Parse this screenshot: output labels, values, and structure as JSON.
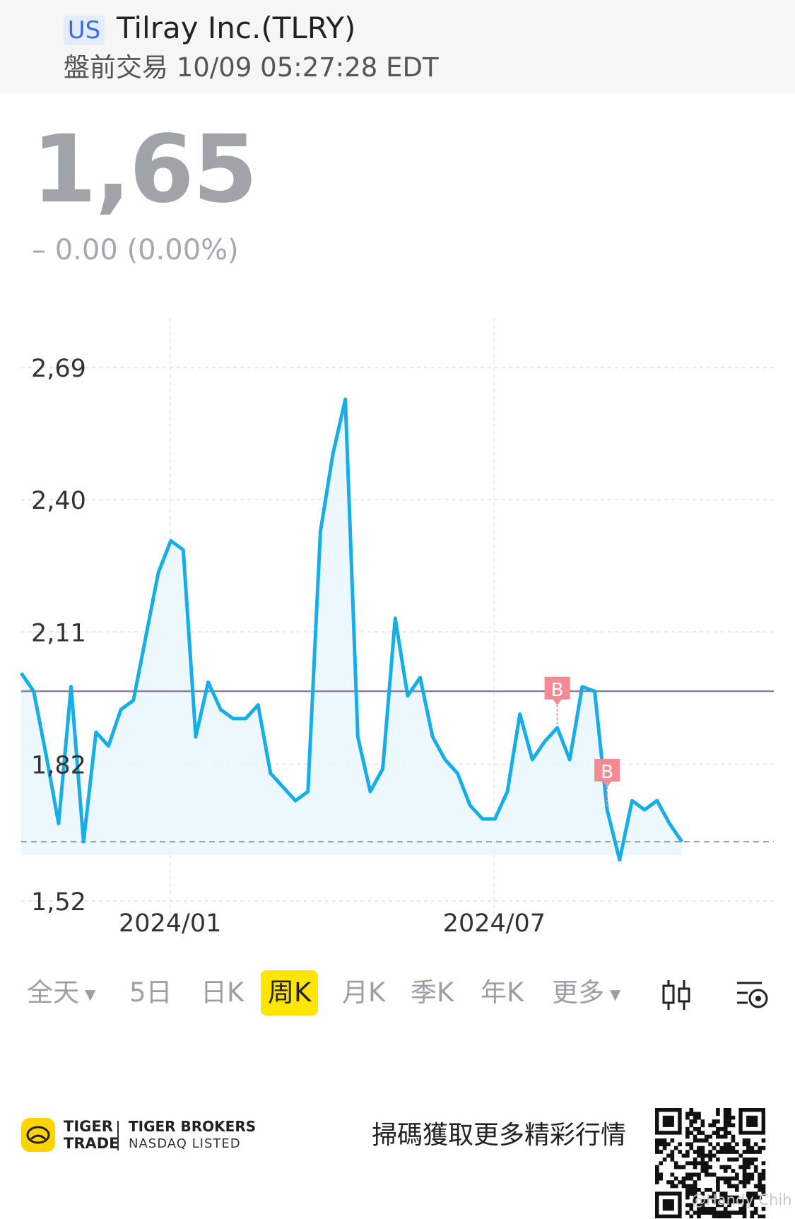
{
  "header": {
    "market": "US",
    "stock_name": "Tilray Inc.(TLRY)",
    "session": "盤前交易 10/09 05:27:28 EDT"
  },
  "quote": {
    "price": "1,65",
    "change": "– 0.00 (0.00%)"
  },
  "chart_data": {
    "type": "line",
    "y_ticks": [
      "2,69",
      "2,40",
      "2,11",
      "1,82",
      "1,52"
    ],
    "x_ticks": [
      "2024/01",
      "2024/07"
    ],
    "ylim": [
      1.52,
      2.69
    ],
    "grid": true,
    "reference_lines": {
      "purple": 1.98,
      "dashed_last": 1.65
    },
    "markers": [
      {
        "label": "B",
        "index": 43
      },
      {
        "label": "B",
        "index": 47
      }
    ],
    "series": [
      {
        "values": [
          2.02,
          1.98,
          1.84,
          1.69,
          1.99,
          1.65,
          1.89,
          1.86,
          1.94,
          1.96,
          2.1,
          2.24,
          2.31,
          2.29,
          1.88,
          2.0,
          1.94,
          1.92,
          1.92,
          1.95,
          1.8,
          1.77,
          1.74,
          1.76,
          2.33,
          2.5,
          2.62,
          1.88,
          1.76,
          1.81,
          2.14,
          1.97,
          2.01,
          1.88,
          1.83,
          1.8,
          1.73,
          1.7,
          1.7,
          1.76,
          1.93,
          1.83,
          1.87,
          1.9,
          1.83,
          1.99,
          1.98,
          1.72,
          1.61,
          1.74,
          1.72,
          1.74,
          1.69,
          1.65
        ]
      }
    ]
  },
  "toolbar": {
    "items": [
      "全天",
      "5日",
      "日K",
      "周K",
      "月K",
      "季K",
      "年K",
      "更多"
    ],
    "active": "周K"
  },
  "footer": {
    "tt_line1": "TIGER",
    "tt_line2": "TRADE",
    "brokers": "TIGER BROKERS",
    "nasdaq": "NASDAQ LISTED",
    "promo": "掃碼獲取更多精彩行情",
    "watermark": "@Handy Chih"
  },
  "colors": {
    "line": "#16aee8",
    "fill": "#e7f6fd",
    "purple_line": "#8e7f9a",
    "marker": "#f58a95",
    "active_tab": "#ffe500"
  },
  "icons": [
    "chevron-down-icon",
    "candlestick-icon",
    "chart-settings-icon",
    "tiger-logo-icon",
    "qr-code-icon"
  ]
}
